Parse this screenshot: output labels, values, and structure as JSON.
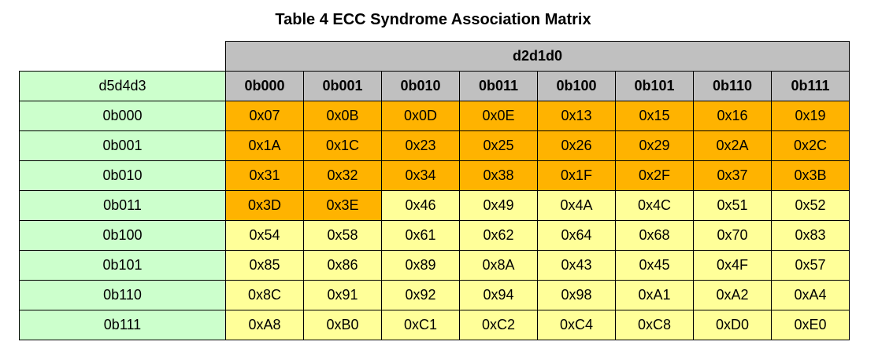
{
  "title": "Table 4 ECC Syndrome Association Matrix",
  "header": {
    "group_label": "d2d1d0",
    "row_header_label": "d5d4d3",
    "columns": [
      "0b000",
      "0b001",
      "0b010",
      "0b011",
      "0b100",
      "0b101",
      "0b110",
      "0b111"
    ]
  },
  "rows": [
    {
      "label": "0b000",
      "cells": [
        "0x07",
        "0x0B",
        "0x0D",
        "0x0E",
        "0x13",
        "0x15",
        "0x16",
        "0x19"
      ],
      "highlight": [
        1,
        1,
        1,
        1,
        1,
        1,
        1,
        1
      ]
    },
    {
      "label": "0b001",
      "cells": [
        "0x1A",
        "0x1C",
        "0x23",
        "0x25",
        "0x26",
        "0x29",
        "0x2A",
        "0x2C"
      ],
      "highlight": [
        1,
        1,
        1,
        1,
        1,
        1,
        1,
        1
      ]
    },
    {
      "label": "0b010",
      "cells": [
        "0x31",
        "0x32",
        "0x34",
        "0x38",
        "0x1F",
        "0x2F",
        "0x37",
        "0x3B"
      ],
      "highlight": [
        1,
        1,
        1,
        1,
        1,
        1,
        1,
        1
      ]
    },
    {
      "label": "0b011",
      "cells": [
        "0x3D",
        "0x3E",
        "0x46",
        "0x49",
        "0x4A",
        "0x4C",
        "0x51",
        "0x52"
      ],
      "highlight": [
        1,
        1,
        0,
        0,
        0,
        0,
        0,
        0
      ]
    },
    {
      "label": "0b100",
      "cells": [
        "0x54",
        "0x58",
        "0x61",
        "0x62",
        "0x64",
        "0x68",
        "0x70",
        "0x83"
      ],
      "highlight": [
        0,
        0,
        0,
        0,
        0,
        0,
        0,
        0
      ]
    },
    {
      "label": "0b101",
      "cells": [
        "0x85",
        "0x86",
        "0x89",
        "0x8A",
        "0x43",
        "0x45",
        "0x4F",
        "0x57"
      ],
      "highlight": [
        0,
        0,
        0,
        0,
        0,
        0,
        0,
        0
      ]
    },
    {
      "label": "0b110",
      "cells": [
        "0x8C",
        "0x91",
        "0x92",
        "0x94",
        "0x98",
        "0xA1",
        "0xA2",
        "0xA4"
      ],
      "highlight": [
        0,
        0,
        0,
        0,
        0,
        0,
        0,
        0
      ]
    },
    {
      "label": "0b111",
      "cells": [
        "0xA8",
        "0xB0",
        "0xC1",
        "0xC2",
        "0xC4",
        "0xC8",
        "0xD0",
        "0xE0"
      ],
      "highlight": [
        0,
        0,
        0,
        0,
        0,
        0,
        0,
        0
      ]
    }
  ],
  "colors": {
    "highlight_cell": "#ffb300",
    "normal_cell": "#ffff99",
    "row_label_bg": "#ccffcc",
    "header_bg": "#c0c0c0"
  }
}
